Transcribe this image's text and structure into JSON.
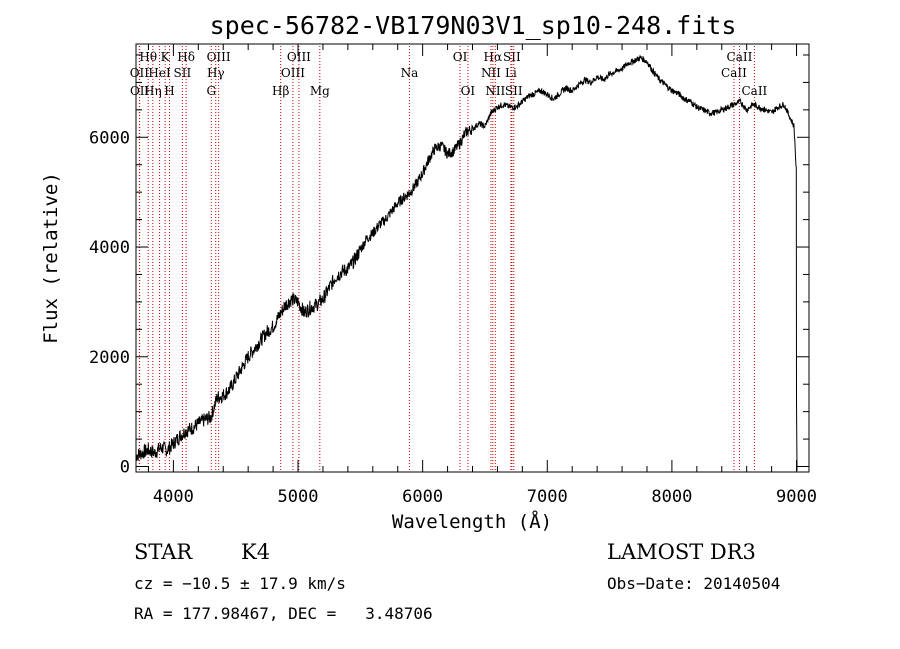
{
  "chart_data": {
    "type": "line",
    "title": "spec-56782-VB179N03V1_sp10-248.fits",
    "xlabel": "Wavelength (Å)",
    "ylabel": "Flux (relative)",
    "xlim": [
      3700,
      9100
    ],
    "ylim": [
      -100,
      7700
    ],
    "x_ticks": [
      4000,
      5000,
      6000,
      7000,
      8000,
      9000
    ],
    "y_ticks": [
      0,
      2000,
      4000,
      6000
    ],
    "series": [
      {
        "name": "spectrum",
        "anchors": [
          [
            3700,
            200
          ],
          [
            3750,
            250
          ],
          [
            3800,
            300
          ],
          [
            3850,
            250
          ],
          [
            3900,
            350
          ],
          [
            3950,
            300
          ],
          [
            4000,
            420
          ],
          [
            4050,
            550
          ],
          [
            4100,
            650
          ],
          [
            4150,
            700
          ],
          [
            4200,
            780
          ],
          [
            4250,
            850
          ],
          [
            4300,
            900
          ],
          [
            4350,
            1250
          ],
          [
            4400,
            1300
          ],
          [
            4450,
            1400
          ],
          [
            4500,
            1600
          ],
          [
            4550,
            1800
          ],
          [
            4600,
            2000
          ],
          [
            4650,
            2150
          ],
          [
            4700,
            2300
          ],
          [
            4750,
            2450
          ],
          [
            4800,
            2550
          ],
          [
            4850,
            2750
          ],
          [
            4900,
            2950
          ],
          [
            4950,
            3050
          ],
          [
            5000,
            3000
          ],
          [
            5050,
            2800
          ],
          [
            5100,
            2900
          ],
          [
            5150,
            2950
          ],
          [
            5200,
            3050
          ],
          [
            5250,
            3250
          ],
          [
            5300,
            3450
          ],
          [
            5350,
            3550
          ],
          [
            5400,
            3600
          ],
          [
            5450,
            3750
          ],
          [
            5500,
            3950
          ],
          [
            5550,
            4150
          ],
          [
            5600,
            4250
          ],
          [
            5650,
            4400
          ],
          [
            5700,
            4500
          ],
          [
            5750,
            4650
          ],
          [
            5800,
            4800
          ],
          [
            5850,
            4900
          ],
          [
            5900,
            5000
          ],
          [
            5950,
            5150
          ],
          [
            6000,
            5350
          ],
          [
            6050,
            5600
          ],
          [
            6100,
            5800
          ],
          [
            6150,
            5850
          ],
          [
            6200,
            5700
          ],
          [
            6250,
            5750
          ],
          [
            6300,
            5900
          ],
          [
            6350,
            6100
          ],
          [
            6400,
            6150
          ],
          [
            6450,
            6250
          ],
          [
            6500,
            6200
          ],
          [
            6550,
            6450
          ],
          [
            6600,
            6550
          ],
          [
            6650,
            6600
          ],
          [
            6700,
            6550
          ],
          [
            6750,
            6550
          ],
          [
            6800,
            6650
          ],
          [
            6850,
            6750
          ],
          [
            6900,
            6800
          ],
          [
            6950,
            6850
          ],
          [
            7000,
            6780
          ],
          [
            7050,
            6700
          ],
          [
            7100,
            6800
          ],
          [
            7150,
            6900
          ],
          [
            7200,
            6850
          ],
          [
            7250,
            6950
          ],
          [
            7300,
            7050
          ],
          [
            7350,
            7000
          ],
          [
            7400,
            7100
          ],
          [
            7450,
            7050
          ],
          [
            7500,
            7150
          ],
          [
            7550,
            7200
          ],
          [
            7600,
            7250
          ],
          [
            7650,
            7350
          ],
          [
            7700,
            7400
          ],
          [
            7750,
            7450
          ],
          [
            7800,
            7380
          ],
          [
            7850,
            7200
          ],
          [
            7900,
            7050
          ],
          [
            7950,
            6950
          ],
          [
            8000,
            6850
          ],
          [
            8050,
            6800
          ],
          [
            8100,
            6700
          ],
          [
            8150,
            6650
          ],
          [
            8200,
            6550
          ],
          [
            8250,
            6500
          ],
          [
            8300,
            6450
          ],
          [
            8350,
            6450
          ],
          [
            8400,
            6500
          ],
          [
            8450,
            6550
          ],
          [
            8500,
            6600
          ],
          [
            8550,
            6650
          ],
          [
            8600,
            6500
          ],
          [
            8650,
            6600
          ],
          [
            8700,
            6550
          ],
          [
            8750,
            6500
          ],
          [
            8800,
            6450
          ],
          [
            8850,
            6550
          ],
          [
            8900,
            6600
          ],
          [
            8950,
            6350
          ],
          [
            8980,
            6200
          ],
          [
            9000,
            5300
          ]
        ]
      }
    ],
    "line_markers": [
      {
        "label": "Hθ",
        "x": 3798,
        "row": 1
      },
      {
        "label": "Hη",
        "x": 3835,
        "row": 3
      },
      {
        "label": "OII",
        "x": 3727,
        "row": 2
      },
      {
        "label": "OII",
        "x": 3729,
        "row": 3
      },
      {
        "label": "HeI",
        "x": 3889,
        "row": 2
      },
      {
        "label": "K",
        "x": 3934,
        "row": 1
      },
      {
        "label": "H",
        "x": 3969,
        "row": 3
      },
      {
        "label": "SII",
        "x": 4072,
        "row": 2
      },
      {
        "label": "Hδ",
        "x": 4102,
        "row": 1
      },
      {
        "label": "G",
        "x": 4304,
        "row": 3
      },
      {
        "label": "OIII",
        "x": 4363,
        "row": 1
      },
      {
        "label": "Hγ",
        "x": 4340,
        "row": 2
      },
      {
        "label": "Hβ",
        "x": 4861,
        "row": 3
      },
      {
        "label": "OIII",
        "x": 4959,
        "row": 2
      },
      {
        "label": "OIII",
        "x": 5007,
        "row": 1
      },
      {
        "label": "Mg",
        "x": 5175,
        "row": 3
      },
      {
        "label": "Na",
        "x": 5894,
        "row": 2
      },
      {
        "label": "OI",
        "x": 6300,
        "row": 1
      },
      {
        "label": "OI",
        "x": 6363,
        "row": 3
      },
      {
        "label": "Hα",
        "x": 6563,
        "row": 1
      },
      {
        "label": "NII",
        "x": 6548,
        "row": 2
      },
      {
        "label": "NII",
        "x": 6583,
        "row": 3
      },
      {
        "label": "SII",
        "x": 6716,
        "row": 1
      },
      {
        "label": "Li",
        "x": 6708,
        "row": 2
      },
      {
        "label": "SII",
        "x": 6731,
        "row": 3
      },
      {
        "label": "CaII",
        "x": 8498,
        "row": 2
      },
      {
        "label": "CaII",
        "x": 8542,
        "row": 1
      },
      {
        "label": "CaII",
        "x": 8662,
        "row": 3
      }
    ]
  },
  "info": {
    "object_class": "STAR",
    "subclass": "K4",
    "survey": "LAMOST DR3",
    "cz": "cz = −10.5 ± 17.9 km/s",
    "obs_date": "Obs−Date: 20140504",
    "coords": "RA = 177.98467, DEC =   3.48706"
  },
  "colors": {
    "line_marker": "#cc0000",
    "spectrum": "#000000",
    "axes": "#000000"
  }
}
